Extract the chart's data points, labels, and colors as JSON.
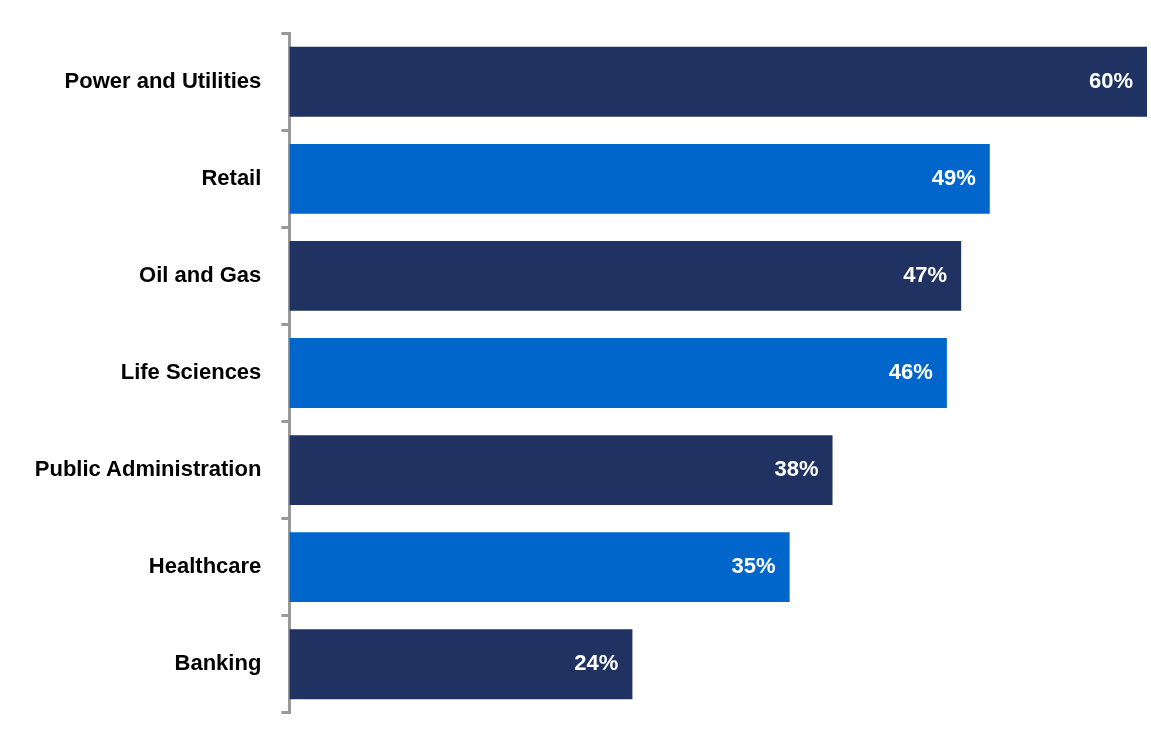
{
  "chart_data": {
    "type": "bar",
    "orientation": "horizontal",
    "categories": [
      "Power and Utilities",
      "Retail",
      "Oil and Gas",
      "Life Sciences",
      "Public Administration",
      "Healthcare",
      "Banking"
    ],
    "values": [
      60,
      49,
      47,
      46,
      38,
      35,
      24
    ],
    "colors": [
      "#203262",
      "#0066cc",
      "#203262",
      "#0066cc",
      "#203262",
      "#0066cc",
      "#203262"
    ],
    "value_labels": [
      "60%",
      "49%",
      "47%",
      "46%",
      "38%",
      "35%",
      "24%"
    ],
    "xlim": [
      0,
      60
    ],
    "tick_labels": "y"
  }
}
